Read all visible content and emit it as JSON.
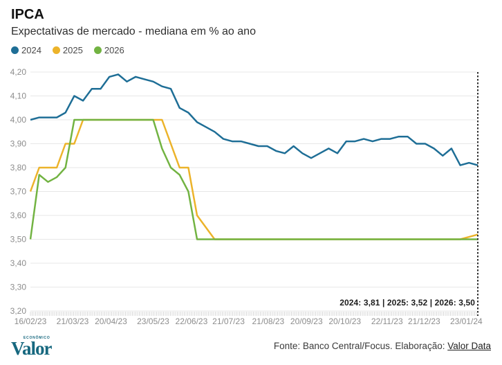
{
  "header": {
    "title": "IPCA",
    "subtitle": "Expectativas de mercado - mediana em % ao ano"
  },
  "legend": [
    {
      "label": "2024",
      "color": "#1e6e96"
    },
    {
      "label": "2025",
      "color": "#ecb32a"
    },
    {
      "label": "2026",
      "color": "#72b342"
    }
  ],
  "chart_data": {
    "type": "line",
    "title": "IPCA",
    "subtitle": "Expectativas de mercado - mediana em % ao ano",
    "ylim": [
      3.2,
      4.2
    ],
    "grid": true,
    "legend_position": "top-left",
    "y_ticks": [
      {
        "value": 4.2,
        "label": "4,20"
      },
      {
        "value": 4.1,
        "label": "4,10"
      },
      {
        "value": 4.0,
        "label": "4,00"
      },
      {
        "value": 3.9,
        "label": "3,90"
      },
      {
        "value": 3.8,
        "label": "3,80"
      },
      {
        "value": 3.7,
        "label": "3,70"
      },
      {
        "value": 3.6,
        "label": "3,60"
      },
      {
        "value": 3.5,
        "label": "3,50"
      },
      {
        "value": 3.4,
        "label": "3,40"
      },
      {
        "value": 3.3,
        "label": "3,30"
      },
      {
        "value": 3.2,
        "label": "3,20"
      }
    ],
    "x_total_days": 350,
    "x_ticks": [
      {
        "day": 0,
        "label": "16/02/23"
      },
      {
        "day": 33,
        "label": "21/03/23"
      },
      {
        "day": 63,
        "label": "20/04/23"
      },
      {
        "day": 96,
        "label": "23/05/23"
      },
      {
        "day": 126,
        "label": "22/06/23"
      },
      {
        "day": 155,
        "label": "21/07/23"
      },
      {
        "day": 186,
        "label": "21/08/23"
      },
      {
        "day": 216,
        "label": "20/09/23"
      },
      {
        "day": 246,
        "label": "20/10/23"
      },
      {
        "day": 279,
        "label": "22/11/23"
      },
      {
        "day": 308,
        "label": "21/12/23"
      },
      {
        "day": 341,
        "label": "23/01/24"
      }
    ],
    "series": [
      {
        "name": "2024",
        "color": "#1e6e96",
        "final_value": "3,81",
        "values": [
          4.0,
          4.01,
          4.01,
          4.01,
          4.03,
          4.1,
          4.08,
          4.13,
          4.13,
          4.18,
          4.19,
          4.16,
          4.18,
          4.17,
          4.16,
          4.14,
          4.13,
          4.05,
          4.03,
          3.99,
          3.97,
          3.95,
          3.92,
          3.91,
          3.91,
          3.9,
          3.89,
          3.89,
          3.87,
          3.86,
          3.89,
          3.86,
          3.84,
          3.86,
          3.88,
          3.86,
          3.91,
          3.91,
          3.92,
          3.91,
          3.92,
          3.92,
          3.93,
          3.93,
          3.9,
          3.9,
          3.88,
          3.85,
          3.88,
          3.81,
          3.82,
          3.81
        ]
      },
      {
        "name": "2025",
        "color": "#ecb32a",
        "final_value": "3,52",
        "values": [
          3.7,
          3.8,
          3.8,
          3.8,
          3.9,
          3.9,
          4.0,
          4.0,
          4.0,
          4.0,
          4.0,
          4.0,
          4.0,
          4.0,
          4.0,
          4.0,
          3.9,
          3.8,
          3.8,
          3.6,
          3.55,
          3.5,
          3.5,
          3.5,
          3.5,
          3.5,
          3.5,
          3.5,
          3.5,
          3.5,
          3.5,
          3.5,
          3.5,
          3.5,
          3.5,
          3.5,
          3.5,
          3.5,
          3.5,
          3.5,
          3.5,
          3.5,
          3.5,
          3.5,
          3.5,
          3.5,
          3.5,
          3.5,
          3.5,
          3.5,
          3.51,
          3.52
        ]
      },
      {
        "name": "2026",
        "color": "#72b342",
        "final_value": "3,50",
        "values": [
          3.5,
          3.77,
          3.74,
          3.76,
          3.8,
          4.0,
          4.0,
          4.0,
          4.0,
          4.0,
          4.0,
          4.0,
          4.0,
          4.0,
          4.0,
          3.88,
          3.8,
          3.77,
          3.7,
          3.5,
          3.5,
          3.5,
          3.5,
          3.5,
          3.5,
          3.5,
          3.5,
          3.5,
          3.5,
          3.5,
          3.5,
          3.5,
          3.5,
          3.5,
          3.5,
          3.5,
          3.5,
          3.5,
          3.5,
          3.5,
          3.5,
          3.5,
          3.5,
          3.5,
          3.5,
          3.5,
          3.5,
          3.5,
          3.5,
          3.5,
          3.5,
          3.5
        ]
      }
    ],
    "end_marker_line": "dashed",
    "annotation": "2024: 3,81  |  2025: 3,52  |  2026: 3,50",
    "colors": {
      "grid": "#e7e7e7",
      "axis_ticks": "#d9d9d9",
      "tick_labels": "#8c8c8c",
      "end_line": "#2f2f2f"
    }
  },
  "footer": {
    "source_prefix": "Fonte: Banco Central/Focus. Elaboração: ",
    "source_link": "Valor Data",
    "logo_main": "Valor",
    "logo_sub": "ECONÔMICO"
  }
}
